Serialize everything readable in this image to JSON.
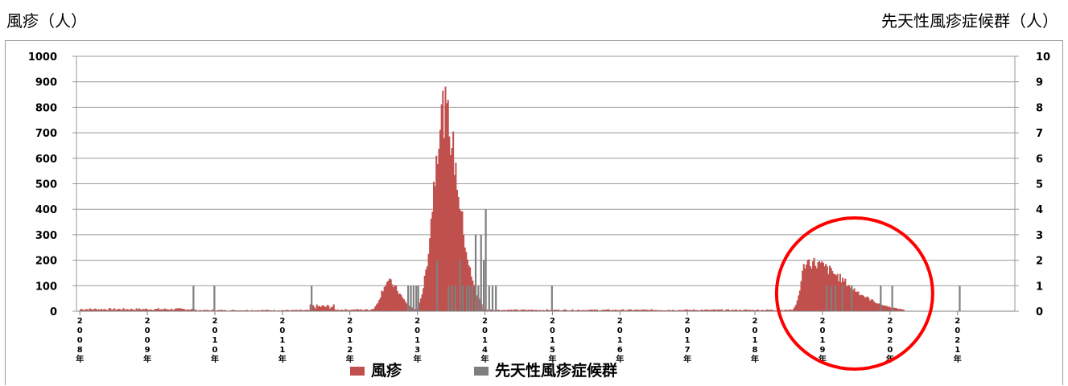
{
  "chart_data": {
    "type": "bar",
    "xlabel": "",
    "y_left_label": "風疹（人）",
    "y_right_label": "先天性風疹症候群（人）",
    "y_left_lim": [
      0,
      1000
    ],
    "y_left_ticks": [
      "0",
      "100",
      "200",
      "300",
      "400",
      "500",
      "600",
      "700",
      "800",
      "900",
      "1000"
    ],
    "y_right_lim": [
      0,
      10
    ],
    "y_right_ticks": [
      "0",
      "1",
      "2",
      "3",
      "4",
      "5",
      "6",
      "7",
      "8",
      "9",
      "10"
    ],
    "x_ticks": [
      {
        "year": 2008,
        "label": "2008年"
      },
      {
        "year": 2009,
        "label": "2009年"
      },
      {
        "year": 2010,
        "label": "2010年"
      },
      {
        "year": 2011,
        "label": "2011年"
      },
      {
        "year": 2012,
        "label": "2012年"
      },
      {
        "year": 2013,
        "label": "2013年"
      },
      {
        "year": 2014,
        "label": "2014年"
      },
      {
        "year": 2015,
        "label": "2015年"
      },
      {
        "year": 2016,
        "label": "2016年"
      },
      {
        "year": 2017,
        "label": "2017年"
      },
      {
        "year": 2018,
        "label": "2018年"
      },
      {
        "year": 2019,
        "label": "2019年"
      },
      {
        "year": 2020,
        "label": "2020年"
      },
      {
        "year": 2021,
        "label": "2021年"
      }
    ],
    "grid": true,
    "legend_position": "bottom",
    "series": [
      {
        "name": "風疹",
        "axis": "left",
        "color": "#c0504d",
        "weekly_profile": [
          {
            "from": 2008.0,
            "to": 2009.7,
            "value": 8
          },
          {
            "from": 2009.7,
            "to": 2011.4,
            "value": 4
          },
          {
            "from": 2011.4,
            "to": 2011.75,
            "value": 18
          },
          {
            "from": 2011.75,
            "to": 2012.3,
            "value": 6
          },
          {
            "from": 2012.3,
            "to": 2013.0,
            "peak": 2012.55,
            "peak_value": 125,
            "base": 8
          },
          {
            "from": 2013.0,
            "to": 2013.95,
            "peak": 2013.37,
            "peak_value": 850,
            "base": 30
          },
          {
            "from": 2013.95,
            "to": 2018.55,
            "value": 5
          },
          {
            "from": 2018.55,
            "to": 2020.2,
            "peak": 2018.75,
            "peak_value": 210,
            "base": 5
          },
          {
            "from": 2020.2,
            "to": 2021.8,
            "value": 0
          }
        ]
      },
      {
        "name": "先天性風疹症候群",
        "axis": "right",
        "color": "#7f7f7f",
        "events": [
          {
            "x": 2009.67,
            "value": 1
          },
          {
            "x": 2009.98,
            "value": 1
          },
          {
            "x": 2011.42,
            "value": 1
          },
          {
            "x": 2012.85,
            "value": 1
          },
          {
            "x": 2012.89,
            "value": 1
          },
          {
            "x": 2012.93,
            "value": 1
          },
          {
            "x": 2012.97,
            "value": 1
          },
          {
            "x": 2013.0,
            "value": 1
          },
          {
            "x": 2013.28,
            "value": 2
          },
          {
            "x": 2013.45,
            "value": 1
          },
          {
            "x": 2013.5,
            "value": 1
          },
          {
            "x": 2013.55,
            "value": 1
          },
          {
            "x": 2013.62,
            "value": 2
          },
          {
            "x": 2013.66,
            "value": 1
          },
          {
            "x": 2013.72,
            "value": 1
          },
          {
            "x": 2013.76,
            "value": 1
          },
          {
            "x": 2013.8,
            "value": 1
          },
          {
            "x": 2013.85,
            "value": 3
          },
          {
            "x": 2013.89,
            "value": 1
          },
          {
            "x": 2013.93,
            "value": 3
          },
          {
            "x": 2013.97,
            "value": 2
          },
          {
            "x": 2014.0,
            "value": 4
          },
          {
            "x": 2014.05,
            "value": 1
          },
          {
            "x": 2014.1,
            "value": 1
          },
          {
            "x": 2014.15,
            "value": 1
          },
          {
            "x": 2014.98,
            "value": 1
          },
          {
            "x": 2019.05,
            "value": 1
          },
          {
            "x": 2019.12,
            "value": 1
          },
          {
            "x": 2019.18,
            "value": 1
          },
          {
            "x": 2019.28,
            "value": 1
          },
          {
            "x": 2019.42,
            "value": 1
          },
          {
            "x": 2019.85,
            "value": 1
          },
          {
            "x": 2020.02,
            "value": 1
          },
          {
            "x": 2021.02,
            "value": 1
          }
        ]
      }
    ],
    "annotation": {
      "shape": "circle",
      "color": "#ff0000",
      "around_year": 2019.5
    }
  }
}
